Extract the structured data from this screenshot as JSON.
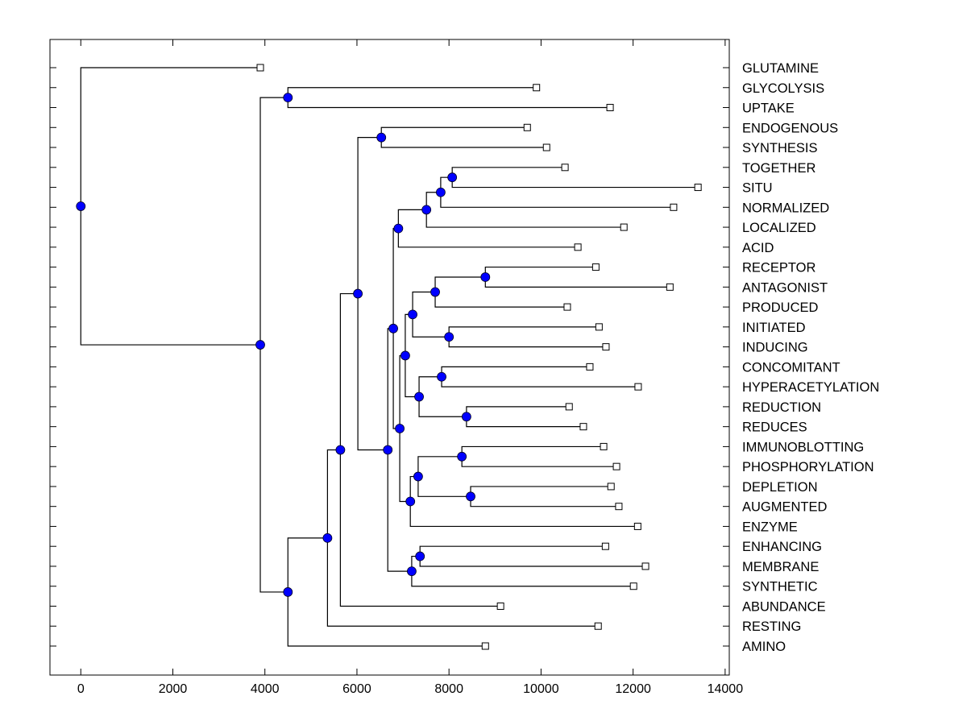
{
  "chart_data": {
    "type": "dendrogram",
    "title": "",
    "xlabel": "",
    "ylabel": "",
    "xlim": [
      -670,
      14090
    ],
    "xticks": [
      0,
      2000,
      4000,
      6000,
      8000,
      10000,
      12000,
      14000
    ],
    "xtick_labels": [
      "0",
      "2000",
      "4000",
      "6000",
      "8000",
      "10000",
      "12000",
      "14000"
    ],
    "grid": false,
    "orientation": "left-to-right",
    "leaf_label_position": "right",
    "colors": {
      "internal_node": "#0000ff",
      "leaf_marker": "#ffffff",
      "line": "#000000"
    },
    "leaves": [
      {
        "id": "L0",
        "label": "GLUTAMINE",
        "x": 3900
      },
      {
        "id": "L1",
        "label": "GLYCOLYSIS",
        "x": 9900
      },
      {
        "id": "L2",
        "label": "UPTAKE",
        "x": 11500
      },
      {
        "id": "L3",
        "label": "ENDOGENOUS",
        "x": 9700
      },
      {
        "id": "L4",
        "label": "SYNTHESIS",
        "x": 10120
      },
      {
        "id": "L5",
        "label": "TOGETHER",
        "x": 10520
      },
      {
        "id": "L6",
        "label": "SITU",
        "x": 13410
      },
      {
        "id": "L7",
        "label": "NORMALIZED",
        "x": 12880
      },
      {
        "id": "L8",
        "label": "LOCALIZED",
        "x": 11800
      },
      {
        "id": "L9",
        "label": "ACID",
        "x": 10800
      },
      {
        "id": "L10",
        "label": "RECEPTOR",
        "x": 11190
      },
      {
        "id": "L11",
        "label": "ANTAGONIST",
        "x": 12800
      },
      {
        "id": "L12",
        "label": "PRODUCED",
        "x": 10570
      },
      {
        "id": "L13",
        "label": "INITIATED",
        "x": 11260
      },
      {
        "id": "L14",
        "label": "INDUCING",
        "x": 11410
      },
      {
        "id": "L15",
        "label": "CONCOMITANT",
        "x": 11060
      },
      {
        "id": "L16",
        "label": "HYPERACETYLATION",
        "x": 12110
      },
      {
        "id": "L17",
        "label": "REDUCTION",
        "x": 10610
      },
      {
        "id": "L18",
        "label": "REDUCES",
        "x": 10920
      },
      {
        "id": "L19",
        "label": "IMMUNOBLOTTING",
        "x": 11360
      },
      {
        "id": "L20",
        "label": "PHOSPHORYLATION",
        "x": 11640
      },
      {
        "id": "L21",
        "label": "DEPLETION",
        "x": 11520
      },
      {
        "id": "L22",
        "label": "AUGMENTED",
        "x": 11690
      },
      {
        "id": "L23",
        "label": "ENZYME",
        "x": 12100
      },
      {
        "id": "L24",
        "label": "ENHANCING",
        "x": 11400
      },
      {
        "id": "L25",
        "label": "MEMBRANE",
        "x": 12270
      },
      {
        "id": "L26",
        "label": "SYNTHETIC",
        "x": 12010
      },
      {
        "id": "L27",
        "label": "ABUNDANCE",
        "x": 9120
      },
      {
        "id": "L28",
        "label": "RESTING",
        "x": 11240
      },
      {
        "id": "L29",
        "label": "AMINO",
        "x": 8790
      }
    ],
    "nodes": [
      {
        "id": "root",
        "x": 0,
        "children": [
          "L0",
          "NA"
        ]
      },
      {
        "id": "NA",
        "x": 3900,
        "children": [
          "NB",
          "NC"
        ]
      },
      {
        "id": "NB",
        "x": 4500,
        "children": [
          "L1",
          "L2"
        ]
      },
      {
        "id": "NC",
        "x": 4500,
        "children": [
          "ND",
          "L29"
        ]
      },
      {
        "id": "ND",
        "x": 5360,
        "children": [
          "NE",
          "L28"
        ]
      },
      {
        "id": "NE",
        "x": 5640,
        "children": [
          "NF",
          "L27"
        ]
      },
      {
        "id": "NF",
        "x": 6020,
        "children": [
          "NG",
          "NH"
        ]
      },
      {
        "id": "NG",
        "x": 6530,
        "children": [
          "L3",
          "L4"
        ]
      },
      {
        "id": "NH",
        "x": 6670,
        "children": [
          "NI",
          "NAA"
        ]
      },
      {
        "id": "NI",
        "x": 6790,
        "children": [
          "NJ",
          "NN"
        ]
      },
      {
        "id": "NJ",
        "x": 6900,
        "children": [
          "NK",
          "L9"
        ]
      },
      {
        "id": "NK",
        "x": 7510,
        "children": [
          "NL",
          "L8"
        ]
      },
      {
        "id": "NL",
        "x": 7820,
        "children": [
          "NM",
          "L7"
        ]
      },
      {
        "id": "NM",
        "x": 8070,
        "children": [
          "L5",
          "L6"
        ]
      },
      {
        "id": "NN",
        "x": 6930,
        "children": [
          "NO",
          "NW"
        ]
      },
      {
        "id": "NO",
        "x": 7050,
        "children": [
          "NP",
          "NT"
        ]
      },
      {
        "id": "NP",
        "x": 7210,
        "children": [
          "NQ",
          "NS"
        ]
      },
      {
        "id": "NQ",
        "x": 7700,
        "children": [
          "NR",
          "L12"
        ]
      },
      {
        "id": "NR",
        "x": 8790,
        "children": [
          "L10",
          "L11"
        ]
      },
      {
        "id": "NS",
        "x": 8000,
        "children": [
          "L13",
          "L14"
        ]
      },
      {
        "id": "NT",
        "x": 7350,
        "children": [
          "NU",
          "NV"
        ]
      },
      {
        "id": "NU",
        "x": 7840,
        "children": [
          "L15",
          "L16"
        ]
      },
      {
        "id": "NV",
        "x": 8380,
        "children": [
          "L17",
          "L18"
        ]
      },
      {
        "id": "NW",
        "x": 7160,
        "children": [
          "NX",
          "L23"
        ]
      },
      {
        "id": "NX",
        "x": 7330,
        "children": [
          "NY",
          "NZ"
        ]
      },
      {
        "id": "NY",
        "x": 8280,
        "children": [
          "L19",
          "L20"
        ]
      },
      {
        "id": "NZ",
        "x": 8470,
        "children": [
          "L21",
          "L22"
        ]
      },
      {
        "id": "NAA",
        "x": 7190,
        "children": [
          "NAB",
          "L26"
        ]
      },
      {
        "id": "NAB",
        "x": 7370,
        "children": [
          "L24",
          "L25"
        ]
      }
    ]
  }
}
